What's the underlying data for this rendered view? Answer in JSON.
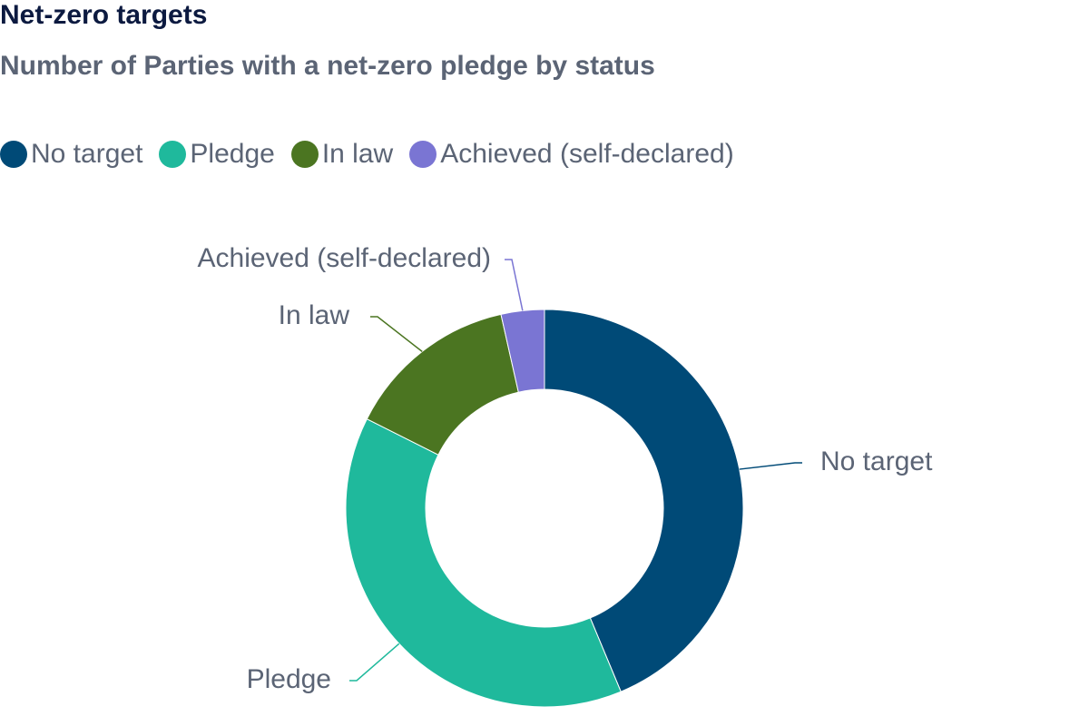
{
  "chart_data": {
    "type": "pie",
    "variant": "donut",
    "title": "Net-zero targets",
    "subtitle": "Number of Parties with a net-zero pledge by status",
    "legend_position": "top-left",
    "categories": [
      "No target",
      "Pledge",
      "In law",
      "Achieved (self-declared)"
    ],
    "values": [
      87,
      77,
      28,
      7
    ],
    "colors": [
      "#004a77",
      "#1fb99c",
      "#4b7521",
      "#7a75d3"
    ]
  }
}
